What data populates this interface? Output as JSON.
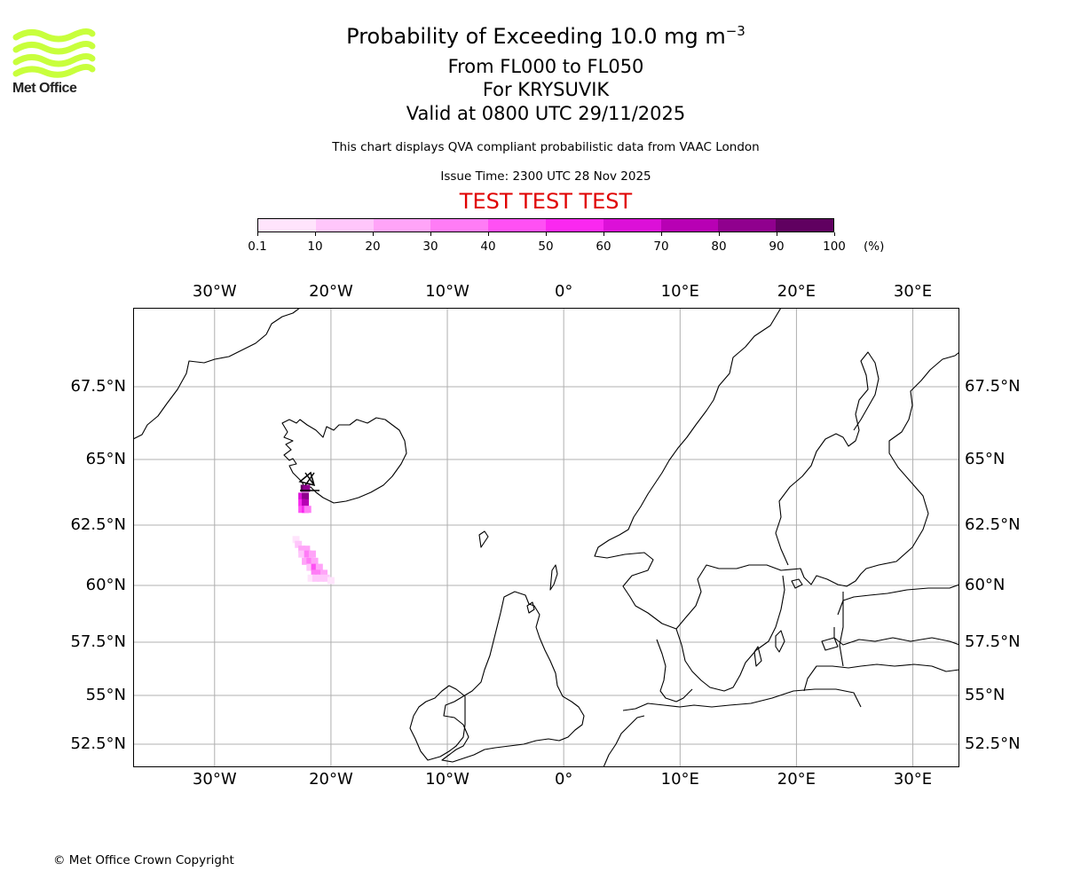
{
  "logo": {
    "text": "Met Office",
    "color": "#c8ff3c"
  },
  "title": {
    "main": "Probability of Exceeding 10.0 mg m",
    "superscript": "−3"
  },
  "flight_levels": "From FL000 to FL050",
  "volcano": "For KRYSUVIK",
  "valid": "Valid at 0800 UTC 29/11/2025",
  "disclaimer": "This chart displays QVA compliant probabilistic data from VAAC London",
  "issue_time": "Issue Time: 2300 UTC 28 Nov 2025",
  "test_banner": {
    "text": "TEST TEST TEST",
    "color": "#e00000"
  },
  "colorbar": {
    "unit": "(%)",
    "tick_labels": [
      "0.1",
      "10",
      "20",
      "30",
      "40",
      "50",
      "60",
      "70",
      "80",
      "90",
      "100"
    ],
    "colors": [
      "#ffe4fc",
      "#ffc6fb",
      "#ffa4f8",
      "#ff7cf6",
      "#ff50f4",
      "#fa28f0",
      "#dc10d8",
      "#b800b4",
      "#90008e",
      "#600060"
    ]
  },
  "map": {
    "longitude_labels": [
      "30°W",
      "20°W",
      "10°W",
      "0°",
      "10°E",
      "20°E",
      "30°E"
    ],
    "latitude_labels": [
      "67.5°N",
      "65°N",
      "62.5°N",
      "60°N",
      "57.5°N",
      "55°N",
      "52.5°N"
    ],
    "longitudes": [
      -30,
      -20,
      -10,
      0,
      10,
      20,
      30
    ],
    "latitudes": [
      67.5,
      65,
      62.5,
      60,
      57.5,
      55,
      52.5
    ],
    "extent": {
      "lon": [
        -37,
        34
      ],
      "lat": [
        51.6,
        70.2
      ]
    },
    "source_marker": "Krysuvik volcano",
    "plume_cells": [
      {
        "lon": -22.3,
        "lat": 63.9,
        "p": 95
      },
      {
        "lon": -22.1,
        "lat": 63.9,
        "p": 85
      },
      {
        "lon": -22.5,
        "lat": 63.6,
        "p": 65
      },
      {
        "lon": -22.2,
        "lat": 63.6,
        "p": 85
      },
      {
        "lon": -22.5,
        "lat": 63.35,
        "p": 55
      },
      {
        "lon": -22.2,
        "lat": 63.35,
        "p": 75
      },
      {
        "lon": -22.5,
        "lat": 63.1,
        "p": 45
      },
      {
        "lon": -22.2,
        "lat": 63.1,
        "p": 55
      },
      {
        "lon": -22.0,
        "lat": 63.1,
        "p": 35
      },
      {
        "lon": -23.0,
        "lat": 61.9,
        "p": 5
      },
      {
        "lon": -22.8,
        "lat": 61.7,
        "p": 15
      },
      {
        "lon": -22.5,
        "lat": 61.5,
        "p": 25
      },
      {
        "lon": -22.1,
        "lat": 61.5,
        "p": 25
      },
      {
        "lon": -22.5,
        "lat": 61.3,
        "p": 15
      },
      {
        "lon": -22.0,
        "lat": 61.3,
        "p": 35
      },
      {
        "lon": -21.6,
        "lat": 61.3,
        "p": 25
      },
      {
        "lon": -22.2,
        "lat": 61.0,
        "p": 25
      },
      {
        "lon": -21.8,
        "lat": 61.0,
        "p": 35
      },
      {
        "lon": -21.4,
        "lat": 61.0,
        "p": 25
      },
      {
        "lon": -21.8,
        "lat": 60.75,
        "p": 15
      },
      {
        "lon": -21.4,
        "lat": 60.75,
        "p": 45
      },
      {
        "lon": -21.0,
        "lat": 60.75,
        "p": 25
      },
      {
        "lon": -21.4,
        "lat": 60.5,
        "p": 35
      },
      {
        "lon": -21.0,
        "lat": 60.5,
        "p": 35
      },
      {
        "lon": -20.6,
        "lat": 60.5,
        "p": 25
      },
      {
        "lon": -21.7,
        "lat": 60.3,
        "p": 5
      },
      {
        "lon": -21.3,
        "lat": 60.3,
        "p": 15
      },
      {
        "lon": -20.9,
        "lat": 60.3,
        "p": 15
      },
      {
        "lon": -20.4,
        "lat": 60.3,
        "p": 15
      },
      {
        "lon": -20.0,
        "lat": 60.2,
        "p": 5
      }
    ]
  },
  "copyright": "© Met Office Crown Copyright"
}
